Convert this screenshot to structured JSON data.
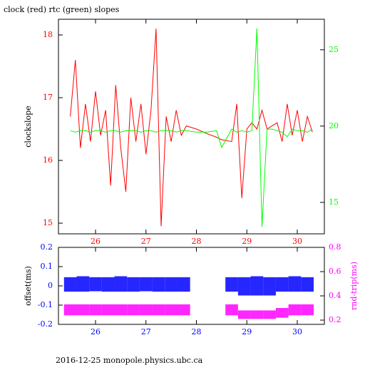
{
  "chart_data": [
    {
      "type": "line",
      "title": "clock (red) rtc (green) slopes",
      "ylabel": "clockslope",
      "x": [
        25.5,
        25.6,
        25.7,
        25.8,
        25.9,
        26.0,
        26.1,
        26.2,
        26.3,
        26.4,
        26.5,
        26.6,
        26.7,
        26.8,
        26.9,
        27.0,
        27.1,
        27.2,
        27.3,
        27.4,
        27.5,
        27.6,
        27.7,
        27.8,
        28.0,
        28.2,
        28.4,
        28.5,
        28.7,
        28.8,
        28.9,
        29.0,
        29.1,
        29.2,
        29.3,
        29.4,
        29.5,
        29.6,
        29.7,
        29.8,
        29.9,
        30.0,
        30.1,
        30.2,
        30.3
      ],
      "series": [
        {
          "color": "#ff0000",
          "values": [
            16.7,
            17.6,
            16.2,
            16.9,
            16.3,
            17.1,
            16.4,
            16.8,
            15.6,
            17.2,
            16.2,
            15.5,
            17.0,
            16.3,
            16.9,
            16.1,
            16.8,
            18.1,
            14.95,
            16.7,
            16.3,
            16.8,
            16.4,
            16.55,
            16.5,
            16.43,
            16.37,
            16.33,
            16.3,
            16.9,
            15.4,
            16.5,
            16.6,
            16.5,
            16.8,
            16.5,
            16.55,
            16.6,
            16.3,
            16.9,
            16.4,
            16.8,
            16.3,
            16.7,
            16.45
          ]
        },
        {
          "color": "#00ff00",
          "axis": "y2",
          "values": [
            19.7,
            19.6,
            19.7,
            19.7,
            19.6,
            19.7,
            19.7,
            19.6,
            19.7,
            19.7,
            19.6,
            19.7,
            19.7,
            19.7,
            19.6,
            19.7,
            19.7,
            19.6,
            19.7,
            19.7,
            19.7,
            19.6,
            19.7,
            19.7,
            19.6,
            19.6,
            19.7,
            18.6,
            19.8,
            19.6,
            19.7,
            19.6,
            19.7,
            26.4,
            13.4,
            19.8,
            19.8,
            19.7,
            19.6,
            19.3,
            19.8,
            19.7,
            19.7,
            19.6,
            19.8
          ]
        }
      ],
      "xlim": [
        25.265,
        30.537
      ],
      "xticks": [
        26,
        27,
        28,
        29,
        30
      ],
      "xtick_color": "#ff0000",
      "ylim": [
        14.83,
        18.25
      ],
      "yticks": [
        15,
        16,
        17,
        18
      ],
      "ytick_color": "#ff0000",
      "y2lim": [
        12.94,
        27.0
      ],
      "y2ticks": [
        15,
        20,
        25
      ],
      "y2tick_color": "#00ff00"
    },
    {
      "type": "range",
      "ylabel": "offset(ms)",
      "y2label": "rnd-trip(ms)",
      "y2label_color": "#ff00ff",
      "bin_width": 0.25,
      "x": [
        25.5,
        25.75,
        26.0,
        26.25,
        26.5,
        26.75,
        27.0,
        27.25,
        27.5,
        27.75,
        28.7,
        28.95,
        29.2,
        29.45,
        29.7,
        29.95,
        30.2
      ],
      "series": [
        {
          "color": "#0000ff",
          "low": [
            -0.03,
            -0.03,
            -0.028,
            -0.03,
            -0.03,
            -0.03,
            -0.028,
            -0.03,
            -0.03,
            -0.03,
            -0.03,
            -0.05,
            -0.05,
            -0.05,
            -0.03,
            -0.03,
            -0.03
          ],
          "high": [
            0.045,
            0.05,
            0.045,
            0.045,
            0.05,
            0.045,
            0.045,
            0.045,
            0.045,
            0.045,
            0.045,
            0.045,
            0.05,
            0.045,
            0.045,
            0.05,
            0.045
          ]
        },
        {
          "color": "#ff00ff",
          "axis": "y2",
          "low": [
            0.24,
            0.24,
            0.24,
            0.24,
            0.24,
            0.24,
            0.24,
            0.24,
            0.24,
            0.24,
            0.24,
            0.21,
            0.21,
            0.21,
            0.22,
            0.24,
            0.24
          ],
          "high": [
            0.33,
            0.33,
            0.33,
            0.33,
            0.33,
            0.33,
            0.33,
            0.33,
            0.33,
            0.33,
            0.33,
            0.28,
            0.28,
            0.28,
            0.3,
            0.33,
            0.33
          ]
        }
      ],
      "xlim": [
        25.265,
        30.537
      ],
      "xticks": [
        26,
        27,
        28,
        29,
        30
      ],
      "xtick_color": "#0000ff",
      "ylim": [
        -0.2,
        0.2
      ],
      "yticks": [
        -0.2,
        -0.1,
        0,
        0.1,
        0.2
      ],
      "ytick_color": "#0000ff",
      "y2lim": [
        0.165,
        0.8
      ],
      "y2ticks": [
        0.2,
        0.4,
        0.6,
        0.8
      ],
      "y2tick_color": "#ff00ff"
    }
  ],
  "footer": "2016-12-25  monopole.physics.ubc.ca"
}
